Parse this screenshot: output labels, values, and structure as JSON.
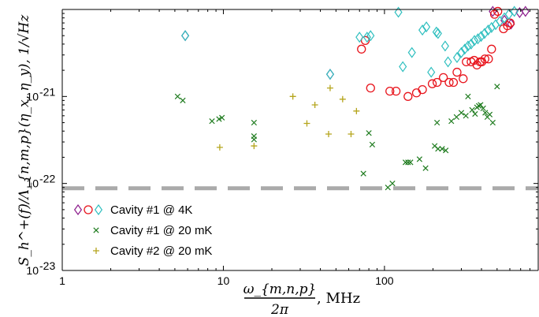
{
  "chart_data": {
    "type": "scatter",
    "title": "",
    "xlabel_numerator": "ω_{m,n,p}",
    "xlabel_denominator": "2π",
    "xlabel_unit": ",  MHz",
    "ylabel": "S_h^+(f)/Λ_{n,m,p}(η_x, η_y), 1/√Hz",
    "x_scale": "log",
    "y_scale": "log",
    "xlim": [
      1,
      900
    ],
    "ylim": [
      1e-23,
      1e-20
    ],
    "x_ticks": [
      {
        "value": 1,
        "label": "1"
      },
      {
        "value": 10,
        "label": "10"
      },
      {
        "value": 100,
        "label": "100"
      }
    ],
    "y_ticks": [
      {
        "value": 1e-23,
        "label": "10",
        "exp": "-23"
      },
      {
        "value": 1e-22,
        "label": "10",
        "exp": "-22"
      },
      {
        "value": 1e-21,
        "label": "10",
        "exp": "-21"
      }
    ],
    "reference_line": {
      "y": 8.8e-23,
      "style": "dashed",
      "color": "#aaaaaa"
    },
    "legend": {
      "placement": "bottom-left",
      "entries": [
        {
          "label": "Cavity #1 @ 4K",
          "markers": [
            "diamond",
            "circle",
            "diamond"
          ],
          "colors": [
            "#8B1A8B",
            "#E8141C",
            "#2FBFBF"
          ]
        },
        {
          "label": "Cavity #1 @ 20 mK",
          "markers": [
            "x"
          ],
          "colors": [
            "#1E7B1E"
          ]
        },
        {
          "label": "Cavity #2 @ 20 mK",
          "markers": [
            "plus"
          ],
          "colors": [
            "#B5A51C"
          ]
        }
      ]
    },
    "series": [
      {
        "name": "Cavity #1 @ 4K (purple)",
        "marker": "diamond",
        "color": "#8B1A8B",
        "points": [
          [
            5.8,
            5e-21
          ],
          [
            46,
            1.8e-21
          ],
          [
            470,
            9.5e-21
          ],
          [
            555,
            7.5e-21
          ],
          [
            610,
            6.8e-21
          ],
          [
            690,
            9.2e-21
          ],
          [
            750,
            9.5e-21
          ]
        ]
      },
      {
        "name": "Cavity #1 @ 4K (red)",
        "marker": "circle",
        "color": "#E8141C",
        "points": [
          [
            72,
            3.5e-21
          ],
          [
            76,
            4.4e-21
          ],
          [
            82,
            1.25e-21
          ],
          [
            108,
            1.15e-21
          ],
          [
            118,
            1.15e-21
          ],
          [
            140,
            1e-21
          ],
          [
            158,
            1.1e-21
          ],
          [
            172,
            1.2e-21
          ],
          [
            198,
            1.4e-21
          ],
          [
            212,
            1.45e-21
          ],
          [
            232,
            1.65e-21
          ],
          [
            252,
            1.45e-21
          ],
          [
            268,
            1.45e-21
          ],
          [
            282,
            1.9e-21
          ],
          [
            308,
            1.6e-21
          ],
          [
            322,
            2.5e-21
          ],
          [
            345,
            2.5e-21
          ],
          [
            360,
            2.6e-21
          ],
          [
            375,
            2.3e-21
          ],
          [
            392,
            2.5e-21
          ],
          [
            402,
            2.5e-21
          ],
          [
            420,
            2.7e-21
          ],
          [
            442,
            2.7e-21
          ],
          [
            462,
            3.5e-21
          ],
          [
            482,
            8.8e-21
          ],
          [
            505,
            9.5e-21
          ],
          [
            548,
            6e-21
          ],
          [
            580,
            6.5e-21
          ],
          [
            602,
            7e-21
          ]
        ]
      },
      {
        "name": "Cavity #1 @ 4K (cyan)",
        "marker": "diamond",
        "color": "#2FBFBF",
        "points": [
          [
            5.8,
            5e-21
          ],
          [
            46,
            1.8e-21
          ],
          [
            70,
            4.8e-21
          ],
          [
            78,
            4.8e-21
          ],
          [
            82,
            5e-21
          ],
          [
            122,
            9.3e-21
          ],
          [
            148,
            3.2e-21
          ],
          [
            172,
            5.8e-21
          ],
          [
            182,
            6.3e-21
          ],
          [
            210,
            5.5e-21
          ],
          [
            215,
            5.3e-21
          ],
          [
            195,
            1.9e-21
          ],
          [
            238,
            3.8e-21
          ],
          [
            248,
            2.5e-21
          ],
          [
            282,
            2.8e-21
          ],
          [
            300,
            3.2e-21
          ],
          [
            315,
            3.5e-21
          ],
          [
            330,
            3.8e-21
          ],
          [
            345,
            4e-21
          ],
          [
            362,
            4.4e-21
          ],
          [
            380,
            4.6e-21
          ],
          [
            398,
            4.9e-21
          ],
          [
            418,
            5.3e-21
          ],
          [
            440,
            5.8e-21
          ],
          [
            462,
            6.2e-21
          ],
          [
            490,
            6.7e-21
          ],
          [
            520,
            7.3e-21
          ],
          [
            555,
            8e-21
          ],
          [
            592,
            8.8e-21
          ],
          [
            640,
            9.5e-21
          ],
          [
            130,
            2.2e-21
          ]
        ]
      },
      {
        "name": "Cavity #1 @ 20 mK",
        "marker": "x",
        "color": "#1E7B1E",
        "points": [
          [
            5.2,
            1e-21
          ],
          [
            5.6,
            9e-22
          ],
          [
            8.5,
            5.2e-22
          ],
          [
            9.4,
            5.5e-22
          ],
          [
            9.8,
            5.7e-22
          ],
          [
            15.5,
            5e-22
          ],
          [
            15.5,
            3.5e-22
          ],
          [
            15.5,
            3.2e-22
          ],
          [
            80,
            3.8e-22
          ],
          [
            74,
            1.3e-22
          ],
          [
            84,
            2.8e-22
          ],
          [
            105,
            9e-23
          ],
          [
            112,
            1e-22
          ],
          [
            135,
            1.75e-22
          ],
          [
            140,
            1.75e-22
          ],
          [
            145,
            1.75e-22
          ],
          [
            165,
            1.9e-22
          ],
          [
            180,
            1.5e-22
          ],
          [
            205,
            2.7e-22
          ],
          [
            215,
            2.5e-22
          ],
          [
            228,
            2.5e-22
          ],
          [
            240,
            2.4e-22
          ],
          [
            212,
            5e-22
          ],
          [
            260,
            5.2e-22
          ],
          [
            280,
            5.8e-22
          ],
          [
            300,
            6.5e-22
          ],
          [
            320,
            6e-22
          ],
          [
            330,
            1e-21
          ],
          [
            350,
            7e-22
          ],
          [
            365,
            6.3e-22
          ],
          [
            375,
            7.5e-22
          ],
          [
            385,
            7.8e-22
          ],
          [
            395,
            8e-22
          ],
          [
            410,
            7.3e-22
          ],
          [
            422,
            6.5e-22
          ],
          [
            435,
            5.8e-22
          ],
          [
            450,
            6.2e-22
          ],
          [
            470,
            5e-22
          ],
          [
            500,
            1.3e-21
          ]
        ]
      },
      {
        "name": "Cavity #2 @ 20 mK",
        "marker": "plus",
        "color": "#B5A51C",
        "points": [
          [
            9.5,
            2.6e-22
          ],
          [
            15.5,
            2.7e-22
          ],
          [
            27,
            1e-21
          ],
          [
            33,
            4.9e-22
          ],
          [
            37,
            8e-22
          ],
          [
            45,
            3.7e-22
          ],
          [
            46,
            1.25e-21
          ],
          [
            55,
            9.3e-22
          ],
          [
            62,
            3.7e-22
          ],
          [
            67,
            6.8e-22
          ]
        ]
      }
    ]
  }
}
